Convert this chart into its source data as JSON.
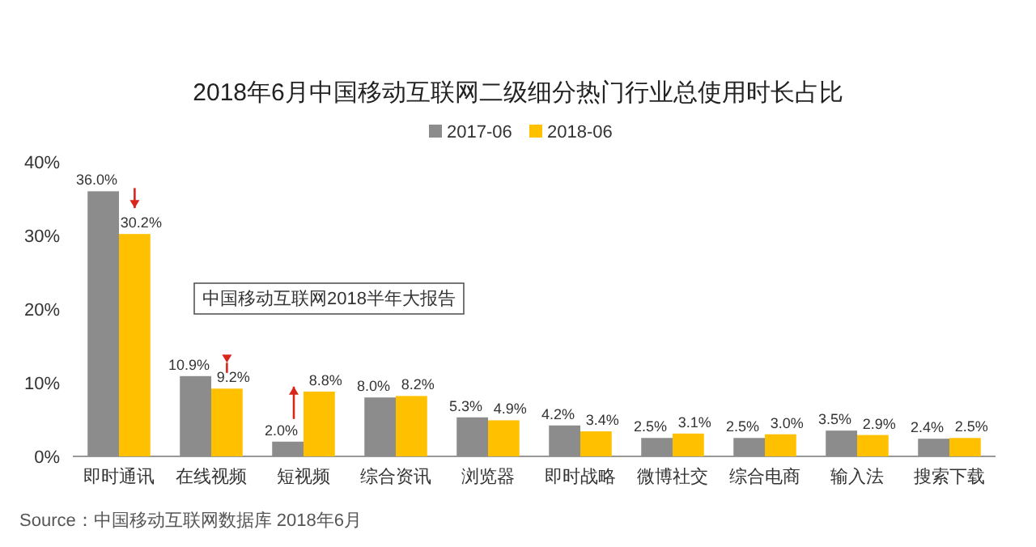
{
  "chart_data": {
    "type": "bar",
    "title": "2018年6月中国移动互联网二级细分热门行业总使用时长占比",
    "categories": [
      "即时通讯",
      "在线视频",
      "短视频",
      "综合资讯",
      "浏览器",
      "即时战略",
      "微博社交",
      "综合电商",
      "输入法",
      "搜索下载"
    ],
    "series": [
      {
        "name": "2017-06",
        "color": "#8c8c8c",
        "values": [
          36.0,
          10.9,
          2.0,
          8.0,
          5.3,
          4.2,
          2.5,
          2.5,
          3.5,
          2.4
        ],
        "value_labels": [
          "36.0%",
          "10.9%",
          "2.0%",
          "8.0%",
          "5.3%",
          "4.2%",
          "2.5%",
          "2.5%",
          "3.5%",
          "2.4%"
        ]
      },
      {
        "name": "2018-06",
        "color": "#ffc000",
        "values": [
          30.2,
          9.2,
          8.8,
          8.2,
          4.9,
          3.4,
          3.1,
          3.0,
          2.9,
          2.5
        ],
        "value_labels": [
          "30.2%",
          "9.2%",
          "8.8%",
          "8.2%",
          "4.9%",
          "3.4%",
          "3.1%",
          "3.0%",
          "2.9%",
          "2.5%"
        ]
      }
    ],
    "ylim": [
      0,
      40
    ],
    "yticks": [
      {
        "value": 0,
        "label": "0%"
      },
      {
        "value": 10,
        "label": "10%"
      },
      {
        "value": 20,
        "label": "20%"
      },
      {
        "value": 30,
        "label": "30%"
      },
      {
        "value": 40,
        "label": "40%"
      }
    ],
    "grid": false,
    "legend": "top",
    "annotations": [
      "中国移动互联网2018半年大报告",
      "Source：中国移动互联网数据库 2018年6月"
    ]
  }
}
